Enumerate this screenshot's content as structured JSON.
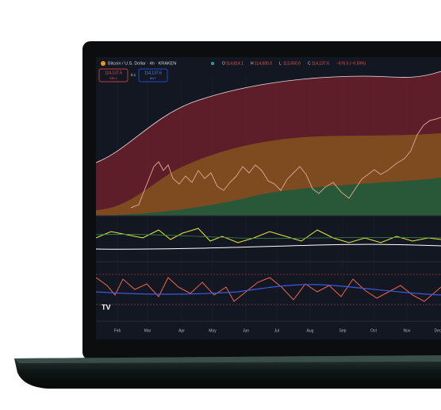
{
  "header": {
    "symbol": "Bitcoin / U.S. Dollar · 4h · KRAKEN",
    "ohlc": [
      {
        "key": "O",
        "value": "114,814.1"
      },
      {
        "key": "H",
        "value": "114,830.0"
      },
      {
        "key": "L",
        "value": "113,550.0"
      },
      {
        "key": "C",
        "value": "114,137.6"
      }
    ],
    "change": "−676.5 (−0.59%)"
  },
  "order": {
    "sell_price": "114,137.5",
    "sell_label": "SELL",
    "quantity": "0.1",
    "buy_price": "114,137.6",
    "buy_label": "BUY"
  },
  "time_axis": [
    "Feb",
    "Mar",
    "Apr",
    "May",
    "Jun",
    "Jul",
    "Aug",
    "Sep",
    "Oct",
    "Nov",
    "Dec"
  ],
  "logo": "TV"
}
